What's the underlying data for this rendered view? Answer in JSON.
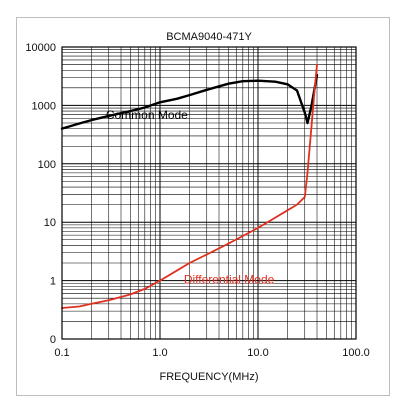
{
  "chart_data": {
    "type": "line",
    "title": "BCMA9040-471Y",
    "xlabel": "FREQUENCY(MHz)",
    "ylabel": "",
    "x_scale": "log",
    "y_scale": "log",
    "xlim": [
      0.1,
      100.0
    ],
    "ylim": [
      0.1,
      10000
    ],
    "x_ticks": [
      {
        "value": 0.1,
        "label": "0.1"
      },
      {
        "value": 1,
        "label": "1.0"
      },
      {
        "value": 10,
        "label": "10.0"
      },
      {
        "value": 100,
        "label": "100.0"
      }
    ],
    "y_ticks": [
      {
        "value": 0.1,
        "label": "0"
      },
      {
        "value": 1,
        "label": "1"
      },
      {
        "value": 10,
        "label": "10"
      },
      {
        "value": 100,
        "label": "100"
      },
      {
        "value": 1000,
        "label": "1000"
      },
      {
        "value": 10000,
        "label": "10000"
      }
    ],
    "grid": true,
    "series": [
      {
        "name": "Common Mode",
        "color": "#000000",
        "x": [
          0.1,
          0.15,
          0.2,
          0.3,
          0.5,
          0.7,
          1.0,
          1.5,
          2,
          3,
          5,
          7,
          10,
          15,
          20,
          25,
          30,
          32,
          35,
          40
        ],
        "y": [
          400,
          490,
          560,
          660,
          800,
          920,
          1130,
          1300,
          1500,
          1850,
          2350,
          2600,
          2650,
          2550,
          2300,
          1800,
          750,
          500,
          950,
          3300
        ]
      },
      {
        "name": "Differential Mode",
        "color": "#e03020",
        "x": [
          0.1,
          0.15,
          0.2,
          0.3,
          0.5,
          0.7,
          1.0,
          1.5,
          2,
          3,
          5,
          7,
          10,
          15,
          20,
          25,
          30,
          32,
          35,
          38,
          40
        ],
        "y": [
          0.34,
          0.36,
          0.4,
          0.46,
          0.58,
          0.72,
          1.0,
          1.5,
          2.0,
          2.8,
          4.3,
          5.8,
          8.0,
          12,
          16,
          20,
          27,
          70,
          400,
          2000,
          5000
        ]
      }
    ],
    "annotations": [
      {
        "text": "Common Mode",
        "x": 0.28,
        "y": 580,
        "color": "#000000"
      },
      {
        "text": "Differential Mode",
        "x": 1.75,
        "y": 0.9,
        "color": "#e03020"
      }
    ]
  }
}
